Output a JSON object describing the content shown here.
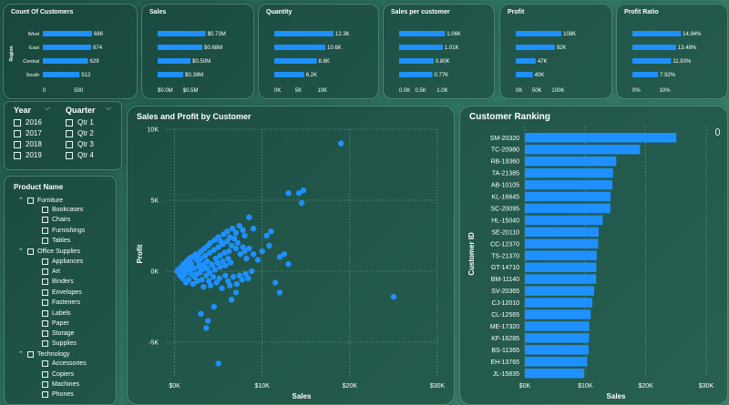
{
  "colors": {
    "bar": "#1e90ff",
    "point": "#1e90ff",
    "text": "#ffffff",
    "grid": "#9fcfbf"
  },
  "kpi_cards": [
    {
      "title": "Count Of Customers",
      "axis_title": "Region",
      "categories": [
        "West",
        "East",
        "Central",
        "South"
      ],
      "values": [
        686,
        674,
        629,
        512
      ],
      "labels": [
        "686",
        "674",
        "629",
        "512"
      ],
      "xmax": 800,
      "ticks": [
        "0",
        "500"
      ],
      "tick_values": [
        0,
        500
      ]
    },
    {
      "title": "Sales",
      "categories": [
        "West",
        "East",
        "Central",
        "South"
      ],
      "values": [
        0.73,
        0.68,
        0.5,
        0.39
      ],
      "labels": [
        "$0.73M",
        "$0.68M",
        "$0.50M",
        "$0.39M"
      ],
      "xmax": 0.9,
      "ticks": [
        "$0.0M",
        "$0.5M"
      ],
      "tick_values": [
        0,
        0.5
      ]
    },
    {
      "title": "Quantity",
      "categories": [
        "West",
        "East",
        "Central",
        "South"
      ],
      "values": [
        12.3,
        10.6,
        8.8,
        6.2
      ],
      "labels": [
        "12.3K",
        "10.6K",
        "8.8K",
        "6.2K"
      ],
      "xmax": 14,
      "ticks": [
        "0K",
        "5K",
        "10K"
      ],
      "tick_values": [
        0,
        5,
        10
      ]
    },
    {
      "title": "Sales per customer",
      "categories": [
        "West",
        "East",
        "Central",
        "South"
      ],
      "values": [
        1.06,
        1.01,
        0.8,
        0.77
      ],
      "labels": [
        "1.06K",
        "1.01K",
        "0.80K",
        "0.77K"
      ],
      "xmax": 1.35,
      "ticks": [
        "0.0K",
        "0.5K",
        "1.0K"
      ],
      "tick_values": [
        0,
        0.5,
        1.0
      ]
    },
    {
      "title": "Profit",
      "categories": [
        "West",
        "East",
        "Central",
        "South"
      ],
      "values": [
        108,
        92,
        47,
        40
      ],
      "labels": [
        "108K",
        "92K",
        "47K",
        "40K"
      ],
      "xmax": 140,
      "ticks": [
        "0K",
        "50K",
        "100K"
      ],
      "tick_values": [
        0,
        50,
        100
      ]
    },
    {
      "title": "Profit Ratio",
      "categories": [
        "West",
        "East",
        "Central",
        "South"
      ],
      "values": [
        14.94,
        13.48,
        11.93,
        7.92
      ],
      "labels": [
        "14.94%",
        "13.48%",
        "11.93%",
        "7.92%"
      ],
      "xmax": 18,
      "ticks": [
        "0%",
        "10%"
      ],
      "tick_values": [
        0,
        10
      ]
    }
  ],
  "year_slicer": {
    "title": "Year",
    "items": [
      "2016",
      "2017",
      "2018",
      "2019"
    ]
  },
  "quarter_slicer": {
    "title": "Quarter",
    "items": [
      "Qtr 1",
      "Qtr 2",
      "Qtr 3",
      "Qtr 4"
    ]
  },
  "product_slicer": {
    "title": "Product Name",
    "categories": [
      {
        "name": "Furniture",
        "items": [
          "Bookcases",
          "Chairs",
          "Furnishings",
          "Tables"
        ]
      },
      {
        "name": "Office Supplies",
        "items": [
          "Appliances",
          "Art",
          "Binders",
          "Envelopes",
          "Fasteners",
          "Labels",
          "Paper",
          "Storage",
          "Supplies"
        ]
      },
      {
        "name": "Technology",
        "items": [
          "Accessories",
          "Copiers",
          "Machines",
          "Phones"
        ]
      }
    ]
  },
  "chart_data": [
    {
      "type": "scatter",
      "title": "Sales and Profit by Customer",
      "xlabel": "Sales",
      "ylabel": "Profit",
      "xlim": [
        -1000,
        30000
      ],
      "ylim": [
        -7500,
        10000
      ],
      "xticks": [
        "$0K",
        "$10K",
        "$20K",
        "$30K"
      ],
      "xtick_values": [
        0,
        10000,
        20000,
        30000
      ],
      "yticks": [
        "10K",
        "5K",
        "0K",
        "-5K"
      ],
      "ytick_values": [
        10000,
        5000,
        0,
        -5000
      ],
      "points": [
        [
          19000,
          9000
        ],
        [
          14200,
          5500
        ],
        [
          14700,
          5700
        ],
        [
          13000,
          5500
        ],
        [
          14500,
          4800
        ],
        [
          8500,
          3800
        ],
        [
          9000,
          3000
        ],
        [
          10500,
          2500
        ],
        [
          8000,
          2500
        ],
        [
          11000,
          2800
        ],
        [
          10800,
          1800
        ],
        [
          12000,
          1000
        ],
        [
          12500,
          1200
        ],
        [
          13000,
          500
        ],
        [
          11500,
          -800
        ],
        [
          12000,
          -1500
        ],
        [
          25000,
          -1800
        ],
        [
          7000,
          -1500
        ],
        [
          6500,
          -2000
        ],
        [
          3000,
          -3000
        ],
        [
          3800,
          -3500
        ],
        [
          5000,
          -6500
        ],
        [
          3600,
          -4000
        ],
        [
          4500,
          -2500
        ],
        [
          400,
          100
        ],
        [
          800,
          300
        ],
        [
          1200,
          -200
        ],
        [
          1500,
          400
        ],
        [
          1800,
          600
        ],
        [
          2000,
          200
        ],
        [
          2200,
          -300
        ],
        [
          2500,
          800
        ],
        [
          2800,
          500
        ],
        [
          3000,
          900
        ],
        [
          3200,
          300
        ],
        [
          3500,
          1100
        ],
        [
          3700,
          700
        ],
        [
          4000,
          1300
        ],
        [
          4200,
          500
        ],
        [
          4500,
          1500
        ],
        [
          4700,
          900
        ],
        [
          5000,
          1700
        ],
        [
          5200,
          1100
        ],
        [
          5500,
          1900
        ],
        [
          5700,
          1300
        ],
        [
          6000,
          2100
        ],
        [
          6200,
          1400
        ],
        [
          6500,
          1800
        ],
        [
          6800,
          2300
        ],
        [
          7000,
          1600
        ],
        [
          7200,
          2000
        ],
        [
          7500,
          1200
        ],
        [
          7800,
          1700
        ],
        [
          8000,
          1400
        ],
        [
          8200,
          900
        ],
        [
          8500,
          1600
        ],
        [
          9000,
          1200
        ],
        [
          9500,
          800
        ],
        [
          10000,
          1400
        ],
        [
          600,
          -300
        ],
        [
          900,
          -500
        ],
        [
          1100,
          100
        ],
        [
          1300,
          -800
        ],
        [
          1600,
          -600
        ],
        [
          1900,
          -200
        ],
        [
          2100,
          -900
        ],
        [
          2300,
          -400
        ],
        [
          2600,
          -700
        ],
        [
          2900,
          -100
        ],
        [
          3100,
          -600
        ],
        [
          3300,
          -1100
        ],
        [
          3600,
          -300
        ],
        [
          3900,
          -700
        ],
        [
          4100,
          -1000
        ],
        [
          4400,
          -400
        ],
        [
          4800,
          -800
        ],
        [
          5100,
          -500
        ],
        [
          5400,
          -1200
        ],
        [
          5800,
          -300
        ],
        [
          6100,
          -700
        ],
        [
          6300,
          -1000
        ],
        [
          6700,
          -400
        ],
        [
          7100,
          -900
        ],
        [
          7400,
          -300
        ],
        [
          7700,
          -600
        ],
        [
          8100,
          -200
        ],
        [
          8400,
          -500
        ],
        [
          8800,
          0
        ],
        [
          1000,
          500
        ],
        [
          1400,
          700
        ],
        [
          1700,
          900
        ],
        [
          2000,
          1000
        ],
        [
          2400,
          1200
        ],
        [
          2700,
          1100
        ],
        [
          3000,
          1400
        ],
        [
          3400,
          1600
        ],
        [
          3800,
          1800
        ],
        [
          4100,
          2000
        ],
        [
          4600,
          2200
        ],
        [
          5000,
          2400
        ],
        [
          5300,
          2100
        ],
        [
          5600,
          2600
        ],
        [
          6000,
          2800
        ],
        [
          6300,
          2400
        ],
        [
          6600,
          3000
        ],
        [
          7000,
          2700
        ],
        [
          7400,
          3200
        ],
        [
          7800,
          2900
        ],
        [
          300,
          0
        ],
        [
          700,
          200
        ],
        [
          1000,
          -100
        ],
        [
          1300,
          300
        ],
        [
          1600,
          100
        ],
        [
          1900,
          500
        ],
        [
          2200,
          200
        ],
        [
          2500,
          -200
        ],
        [
          2800,
          300
        ],
        [
          3100,
          100
        ],
        [
          3400,
          500
        ],
        [
          3700,
          200
        ],
        [
          4000,
          -100
        ],
        [
          4300,
          400
        ],
        [
          4600,
          100
        ],
        [
          4900,
          600
        ],
        [
          5200,
          300
        ],
        [
          5500,
          700
        ],
        [
          5800,
          400
        ],
        [
          6100,
          900
        ],
        [
          6400,
          600
        ]
      ]
    },
    {
      "type": "bar",
      "orientation": "horizontal",
      "title": "Customer Ranking",
      "xlabel": "Sales",
      "ylabel": "Customer ID",
      "xlim": [
        0,
        30000
      ],
      "xticks": [
        "$0K",
        "$10K",
        "$20K",
        "$30K"
      ],
      "xtick_values": [
        0,
        10000,
        20000,
        30000
      ],
      "categories": [
        "SM-20320",
        "TC-20980",
        "RB-19360",
        "TA-21385",
        "AB-10105",
        "KL-16645",
        "SC-20095",
        "HL-15040",
        "SE-20110",
        "CC-12370",
        "TS-21370",
        "GT-14710",
        "BM-11140",
        "SV-20365",
        "CJ-12010",
        "CL-12565",
        "ME-17320",
        "KF-16285",
        "BS-11365",
        "EH-13765",
        "JL-15835"
      ],
      "values": [
        25043,
        19052,
        15117,
        14596,
        14474,
        14175,
        14142,
        12873,
        12209,
        12129,
        11891,
        11820,
        11790,
        11471,
        11164,
        10880,
        10664,
        10608,
        10546,
        10310,
        9800
      ]
    }
  ]
}
